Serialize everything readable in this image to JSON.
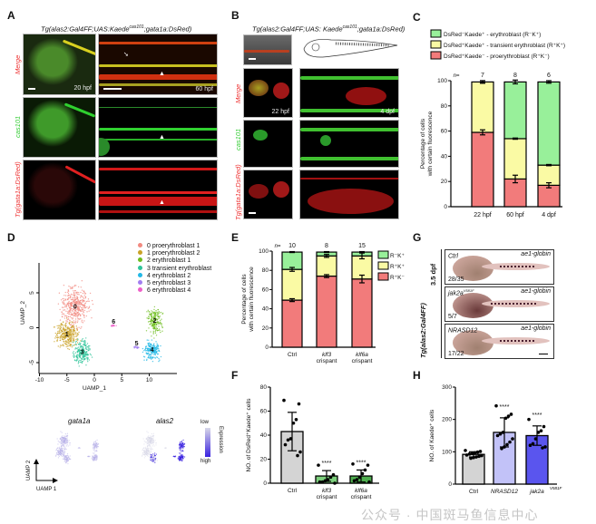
{
  "panels": {
    "A": {
      "label": "A",
      "title": "Tg(alas2:Gal4FF;UAS:Kaede",
      "title_sup": "cas101",
      "title_end": ";gata1a:DsRed)",
      "rows": [
        "Merge",
        "cas101",
        "Tg(gata1a:DsRed)"
      ],
      "times": [
        "20 hpf",
        "60 hpf"
      ]
    },
    "B": {
      "label": "B",
      "title": "Tg(alas2:Gal4FF;UAS: Kaede",
      "title_sup": "cas101",
      "title_end": ";gata1a:DsRed)",
      "rows": [
        "Merge",
        "cas101",
        "Tg(gata1a:DsRed)"
      ],
      "times": [
        "22 hpf",
        "4 dpf"
      ]
    },
    "C": {
      "label": "C"
    },
    "D": {
      "label": "D"
    },
    "E": {
      "label": "E"
    },
    "F": {
      "label": "F"
    },
    "G": {
      "label": "G",
      "stage": "3.5 dpf",
      "genotype": "Tg(alas2:Gal4FF)",
      "rows": [
        {
          "condition": "Ctrl",
          "sup": "",
          "probe": "ae1-globin",
          "ratio": "28/35"
        },
        {
          "condition": "jak2a",
          "sup": "V581F",
          "probe": "ae1-globin",
          "ratio": "5/7"
        },
        {
          "condition": "NRASD12",
          "sup": "",
          "probe": "ae1-globin",
          "ratio": "17/22"
        }
      ]
    },
    "H": {
      "label": "H"
    }
  },
  "expression": {
    "genes": [
      "gata1a",
      "alas2"
    ],
    "legend_title": "Expression",
    "low": "low",
    "high": "high",
    "axis_x": "UAMP 1",
    "axis_y": "UAMP 2",
    "colors": {
      "low": "#d8d8e8",
      "high": "#3a22e0"
    }
  },
  "watermark": "公众号 · 中国斑马鱼信息中心",
  "chart_data": [
    {
      "panel": "C",
      "type": "bar",
      "stacked": true,
      "categories": [
        "22 hpf",
        "60 hpf",
        "4 dpf"
      ],
      "n_label": "n=",
      "n": [
        "7",
        "8",
        "6"
      ],
      "ylabel": [
        "Percentage of cells",
        "with certain fluorescence"
      ],
      "ylim": [
        0,
        100
      ],
      "yticks": [
        "0",
        "20",
        "40",
        "60",
        "80",
        "100"
      ],
      "legend": [
        "DsRed⁻Kaede⁺ - erythroblast (R⁻K⁺)",
        "DsRed⁺Kaede⁺ - transient erythroblast (R⁺K⁺)",
        "DsRed⁺Kaede⁻ - proerythroblast (R⁺K⁻)"
      ],
      "legend_placement": "top",
      "series": [
        {
          "name": "DsRed⁺Kaede⁻ - proerythroblast (R⁺K⁻)",
          "color": "#f27b7b",
          "values": [
            59,
            22,
            17
          ],
          "err": [
            2,
            3,
            2
          ]
        },
        {
          "name": "DsRed⁺Kaede⁺ - transient erythroblast (R⁺K⁺)",
          "color": "#fafaa4",
          "values": [
            40,
            32,
            16
          ],
          "err": [
            1,
            0.5,
            0.5
          ]
        },
        {
          "name": "DsRed⁻Kaede⁺ - erythroblast (R⁻K⁺)",
          "color": "#98f09a",
          "values": [
            0,
            45,
            66
          ],
          "err": [
            1,
            1.5,
            1
          ]
        }
      ]
    },
    {
      "panel": "E",
      "type": "bar",
      "stacked": true,
      "categories": [
        [
          "Ctrl",
          ""
        ],
        [
          "klf3",
          "crispant"
        ],
        [
          "klf6a",
          "crispant"
        ]
      ],
      "n_label": "n=",
      "n": [
        "10",
        "8",
        "15"
      ],
      "ylabel": [
        "Percentage of cells",
        "with certain fluorescence"
      ],
      "ylim": [
        0,
        100
      ],
      "yticks": [
        "0",
        "20",
        "40",
        "60",
        "80",
        "100"
      ],
      "legend": [
        "R⁻K⁺",
        "R⁺K⁺",
        "R⁺K⁻"
      ],
      "legend_placement": "right",
      "series": [
        {
          "name": "R⁺K⁻",
          "color": "#f27b7b",
          "values": [
            49,
            74,
            71
          ],
          "err": [
            1.5,
            1.5,
            4
          ]
        },
        {
          "name": "R⁺K⁺",
          "color": "#fafaa4",
          "values": [
            32,
            21,
            24
          ],
          "err": [
            2,
            1.5,
            3
          ]
        },
        {
          "name": "R⁻K⁺",
          "color": "#98f09a",
          "values": [
            18,
            4,
            4
          ],
          "err": [
            0.5,
            0.5,
            0.5
          ]
        }
      ]
    },
    {
      "panel": "F",
      "type": "bar",
      "categories": [
        [
          "Ctrl",
          ""
        ],
        [
          "klf3",
          "crispant"
        ],
        [
          "klf6a",
          "crispant"
        ]
      ],
      "ylabel": [
        "NO. of DsRed⁺Kaede⁺ cells"
      ],
      "ylim": [
        0,
        80
      ],
      "yticks": [
        "0",
        "20",
        "40",
        "60",
        "80"
      ],
      "values": [
        43,
        6,
        6
      ],
      "err": [
        16,
        4.5,
        5
      ],
      "colors": [
        "#d4d4d4",
        "#7ccf7c",
        "#4fae4f"
      ],
      "points": [
        [
          69,
          66,
          53,
          50,
          37,
          36,
          32,
          26,
          23
        ],
        [
          15,
          7,
          5,
          3,
          2,
          1,
          1,
          0
        ],
        [
          16,
          15,
          11,
          8,
          5,
          3,
          2,
          1
        ]
      ],
      "significance": [
        "",
        "****",
        "****"
      ]
    },
    {
      "panel": "H",
      "type": "bar",
      "categories": [
        [
          "Ctrl",
          ""
        ],
        [
          "NRASD12",
          ""
        ],
        [
          "jak2a",
          "V581F"
        ]
      ],
      "ylabel": [
        "NO. of Kaede⁺ cells"
      ],
      "ylim": [
        0,
        300
      ],
      "yticks": [
        "0",
        "100",
        "200",
        "300"
      ],
      "values": [
        92,
        160,
        150
      ],
      "err": [
        8,
        45,
        30
      ],
      "colors": [
        "#d4d4d4",
        "#c2c2f8",
        "#5a55ee"
      ],
      "points": [
        [
          104,
          101,
          99,
          97,
          95,
          93,
          90,
          88,
          86,
          84,
          82,
          80
        ],
        [
          242,
          216,
          210,
          204,
          160,
          155,
          150,
          140,
          130,
          122,
          115,
          110
        ],
        [
          200,
          178,
          165,
          160,
          140,
          125,
          120,
          115,
          112
        ]
      ],
      "significance": [
        "",
        "****",
        "****"
      ]
    },
    {
      "panel": "D",
      "type": "scatter",
      "xlabel": "UAMP_1",
      "ylabel": "UAMP_2",
      "xlim": [
        -10,
        14
      ],
      "ylim": [
        -6,
        8
      ],
      "xticks": [
        "-10",
        "-5",
        "0",
        "5",
        "10"
      ],
      "yticks": [
        "-5",
        "0",
        "5"
      ],
      "legend_placement": "top-right",
      "clusters": [
        {
          "id": "0",
          "name": "proerythroblast 1",
          "color": "#f28a80",
          "center": [
            -3.5,
            3
          ],
          "spread": [
            2.2,
            2.6
          ],
          "count": 420
        },
        {
          "id": "1",
          "name": "proerythroblast 2",
          "color": "#c9a227",
          "center": [
            -5,
            -1
          ],
          "spread": [
            1.9,
            1.8
          ],
          "count": 320
        },
        {
          "id": "2",
          "name": "erythroblast 1",
          "color": "#6dbd1f",
          "center": [
            11,
            1
          ],
          "spread": [
            1.3,
            1.8
          ],
          "count": 200
        },
        {
          "id": "3",
          "name": "transient erythroblast",
          "color": "#2fc49a",
          "center": [
            -2.2,
            -3.5
          ],
          "spread": [
            1.5,
            1.6
          ],
          "count": 240
        },
        {
          "id": "4",
          "name": "erythroblast 2",
          "color": "#22b8e6",
          "center": [
            10.5,
            -3.2
          ],
          "spread": [
            1.4,
            1.2
          ],
          "count": 200
        },
        {
          "id": "5",
          "name": "erythroblast 3",
          "color": "#a27ef0",
          "center": [
            7.7,
            -2.8
          ],
          "spread": [
            0.5,
            0.15
          ],
          "count": 20
        },
        {
          "id": "6",
          "name": "erythroblast 4",
          "color": "#ee5fc8",
          "center": [
            3.5,
            0.3
          ],
          "spread": [
            0.4,
            0.12
          ],
          "count": 14
        }
      ]
    }
  ]
}
